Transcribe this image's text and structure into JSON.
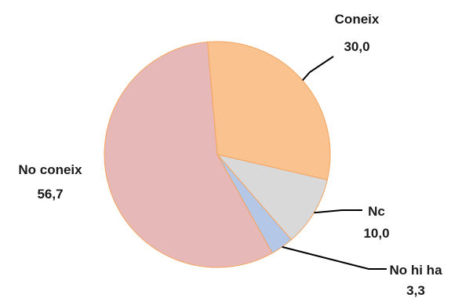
{
  "chart_data": {
    "type": "pie",
    "title": "",
    "slices": [
      {
        "label": "Coneix",
        "value": 30.0,
        "display_value": "30,0",
        "color": "#F9C28E"
      },
      {
        "label": "Nc",
        "value": 10.0,
        "display_value": "10,0",
        "color": "#D9D9D9"
      },
      {
        "label": "No hi ha",
        "value": 3.3,
        "display_value": "3,3",
        "color": "#B4C7E7"
      },
      {
        "label": "No coneix",
        "value": 56.7,
        "display_value": "56,7",
        "color": "#E6B9B8"
      }
    ],
    "slice_border_color": "#F4A460",
    "legend": "none"
  }
}
